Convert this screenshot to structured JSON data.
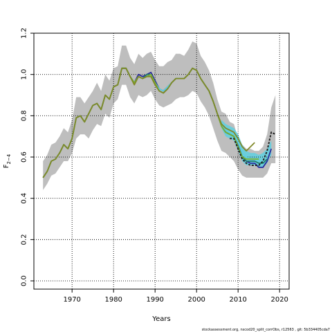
{
  "chart_data": {
    "type": "line",
    "xlabel": "Years",
    "ylabel_main": "F",
    "ylabel_sub": "2−4",
    "xlim": [
      1960.8,
      2022.3
    ],
    "ylim": [
      -0.04,
      1.2
    ],
    "x_ticks": [
      1970,
      1980,
      1990,
      2000,
      2010,
      2020
    ],
    "y_ticks": [
      0.0,
      0.2,
      0.4,
      0.6,
      0.8,
      1.0,
      1.2
    ],
    "y_tick_labels": [
      "0.0",
      "0.2",
      "0.4",
      "0.6",
      "0.8",
      "1.0",
      "1.2"
    ],
    "grid": true,
    "credit": "stockassessment.org, nscod20_split_corrObs, r12563 , git: 5b334405cda7",
    "colors": {
      "band": "#bebebe",
      "band2": "#5fd0e0",
      "grid": "#000000",
      "series": [
        "#2a2a9a",
        "#1f7a6a",
        "#5fd0e0",
        "#7ab030",
        "#808828",
        "#222222"
      ]
    },
    "band": {
      "x": [
        1963,
        1964,
        1965,
        1966,
        1967,
        1968,
        1969,
        1970,
        1971,
        1972,
        1973,
        1974,
        1975,
        1976,
        1977,
        1978,
        1979,
        1980,
        1981,
        1982,
        1983,
        1984,
        1985,
        1986,
        1987,
        1988,
        1989,
        1990,
        1991,
        1992,
        1993,
        1994,
        1995,
        1996,
        1997,
        1998,
        1999,
        2000,
        2001,
        2002,
        2003,
        2004,
        2005,
        2006,
        2007,
        2008,
        2009,
        2010,
        2011,
        2012,
        2013,
        2014,
        2015,
        2016,
        2017,
        2018,
        2019
      ],
      "lower": [
        0.44,
        0.47,
        0.51,
        0.52,
        0.55,
        0.58,
        0.58,
        0.62,
        0.69,
        0.71,
        0.71,
        0.69,
        0.73,
        0.76,
        0.75,
        0.81,
        0.79,
        0.86,
        0.88,
        0.95,
        0.95,
        0.89,
        0.86,
        0.9,
        0.89,
        0.9,
        0.92,
        0.88,
        0.85,
        0.84,
        0.85,
        0.86,
        0.88,
        0.89,
        0.89,
        0.9,
        0.92,
        0.91,
        0.87,
        0.84,
        0.8,
        0.74,
        0.68,
        0.63,
        0.62,
        0.6,
        0.58,
        0.54,
        0.51,
        0.5,
        0.5,
        0.5,
        0.5,
        0.5,
        0.52,
        0.57,
        0.57
      ],
      "upper": [
        0.58,
        0.61,
        0.66,
        0.67,
        0.7,
        0.74,
        0.72,
        0.78,
        0.89,
        0.89,
        0.86,
        0.89,
        0.92,
        0.96,
        0.92,
        1.0,
        0.97,
        1.03,
        1.04,
        1.14,
        1.14,
        1.08,
        1.05,
        1.1,
        1.08,
        1.1,
        1.11,
        1.07,
        1.04,
        1.04,
        1.06,
        1.07,
        1.1,
        1.1,
        1.09,
        1.12,
        1.16,
        1.15,
        1.09,
        1.06,
        1.02,
        0.96,
        0.88,
        0.82,
        0.81,
        0.77,
        0.76,
        0.69,
        0.66,
        0.64,
        0.64,
        0.63,
        0.63,
        0.65,
        0.71,
        0.84,
        0.9
      ]
    },
    "band2": {
      "x": [
        2006,
        2007,
        2008,
        2009,
        2010,
        2011,
        2012,
        2013,
        2014,
        2015,
        2016,
        2017,
        2018
      ],
      "lower": [
        0.74,
        0.7,
        0.69,
        0.68,
        0.63,
        0.58,
        0.56,
        0.56,
        0.56,
        0.55,
        0.55,
        0.57,
        0.61
      ],
      "upper": [
        0.78,
        0.76,
        0.75,
        0.74,
        0.71,
        0.66,
        0.63,
        0.62,
        0.62,
        0.61,
        0.62,
        0.64,
        0.68
      ]
    },
    "series": [
      {
        "x": [
          1963,
          1964,
          1965,
          1966,
          1967,
          1968,
          1969,
          1970,
          1971,
          1972,
          1973,
          1974,
          1975,
          1976,
          1977,
          1978,
          1979,
          1980,
          1981,
          1982,
          1983,
          1984,
          1985,
          1986,
          1987,
          1988,
          1989,
          1990,
          1991,
          1992,
          1993,
          1994,
          1995,
          1996,
          1997,
          1998,
          1999,
          2000,
          2001,
          2002,
          2003,
          2004,
          2005,
          2006,
          2007,
          2008,
          2009,
          2010,
          2011,
          2012,
          2013,
          2014,
          2015,
          2016,
          2017,
          2018
        ],
        "values": [
          0.5,
          0.53,
          0.58,
          0.59,
          0.62,
          0.66,
          0.64,
          0.69,
          0.79,
          0.8,
          0.77,
          0.81,
          0.85,
          0.86,
          0.83,
          0.9,
          0.88,
          0.94,
          0.95,
          1.03,
          1.03,
          0.99,
          0.96,
          1.0,
          0.99,
          1.0,
          1.01,
          0.97,
          0.93,
          0.92,
          0.94,
          0.96,
          0.98,
          0.98,
          0.98,
          1.0,
          1.03,
          1.02,
          0.98,
          0.95,
          0.92,
          0.87,
          0.81,
          0.76,
          0.72,
          0.71,
          0.7,
          0.66,
          0.6,
          0.58,
          0.57,
          0.57,
          0.55,
          0.55,
          0.58,
          0.64
        ]
      },
      {
        "x": [
          1963,
          1964,
          1965,
          1966,
          1967,
          1968,
          1969,
          1970,
          1971,
          1972,
          1973,
          1974,
          1975,
          1976,
          1977,
          1978,
          1979,
          1980,
          1981,
          1982,
          1983,
          1984,
          1985,
          1986,
          1987,
          1988,
          1989,
          1990,
          1991,
          1992,
          1993,
          1994,
          1995,
          1996,
          1997,
          1998,
          1999,
          2000,
          2001,
          2002,
          2003,
          2004,
          2005,
          2006,
          2007,
          2008,
          2009,
          2010,
          2011,
          2012,
          2013,
          2014,
          2015,
          2016,
          2017
        ],
        "values": [
          0.5,
          0.53,
          0.58,
          0.59,
          0.62,
          0.66,
          0.64,
          0.69,
          0.79,
          0.8,
          0.77,
          0.81,
          0.85,
          0.86,
          0.83,
          0.9,
          0.88,
          0.94,
          0.95,
          1.03,
          1.03,
          0.99,
          0.96,
          0.99,
          0.98,
          1.0,
          1.0,
          0.96,
          0.92,
          0.91,
          0.93,
          0.96,
          0.98,
          0.98,
          0.98,
          1.0,
          1.03,
          1.02,
          0.98,
          0.95,
          0.92,
          0.87,
          0.81,
          0.75,
          0.72,
          0.71,
          0.7,
          0.65,
          0.6,
          0.58,
          0.58,
          0.58,
          0.57,
          0.57,
          0.59
        ]
      },
      {
        "x": [
          1963,
          1964,
          1965,
          1966,
          1967,
          1968,
          1969,
          1970,
          1971,
          1972,
          1973,
          1974,
          1975,
          1976,
          1977,
          1978,
          1979,
          1980,
          1981,
          1982,
          1983,
          1984,
          1985,
          1986,
          1987,
          1988,
          1989,
          1990,
          1991,
          1992,
          1993,
          1994,
          1995,
          1996,
          1997,
          1998,
          1999,
          2000,
          2001,
          2002,
          2003,
          2004,
          2005,
          2006,
          2007,
          2008,
          2009,
          2010,
          2011,
          2012,
          2013,
          2014,
          2015,
          2016
        ],
        "values": [
          0.5,
          0.53,
          0.58,
          0.59,
          0.62,
          0.66,
          0.64,
          0.69,
          0.79,
          0.8,
          0.77,
          0.81,
          0.85,
          0.86,
          0.83,
          0.9,
          0.88,
          0.94,
          0.95,
          1.03,
          1.03,
          0.99,
          0.96,
          0.99,
          0.98,
          0.99,
          1.0,
          0.96,
          0.93,
          0.92,
          0.94,
          0.96,
          0.98,
          0.98,
          0.98,
          1.0,
          1.03,
          1.02,
          0.98,
          0.95,
          0.92,
          0.87,
          0.81,
          0.76,
          0.73,
          0.72,
          0.71,
          0.67,
          0.62,
          0.6,
          0.59,
          0.59,
          0.58,
          0.58
        ]
      },
      {
        "x": [
          1963,
          1964,
          1965,
          1966,
          1967,
          1968,
          1969,
          1970,
          1971,
          1972,
          1973,
          1974,
          1975,
          1976,
          1977,
          1978,
          1979,
          1980,
          1981,
          1982,
          1983,
          1984,
          1985,
          1986,
          1987,
          1988,
          1989,
          1990,
          1991,
          1992,
          1993,
          1994,
          1995,
          1996,
          1997,
          1998,
          1999,
          2000,
          2001,
          2002,
          2003,
          2004,
          2005,
          2006,
          2007,
          2008,
          2009,
          2010,
          2011,
          2012,
          2013,
          2014,
          2015
        ],
        "values": [
          0.5,
          0.53,
          0.58,
          0.59,
          0.62,
          0.66,
          0.64,
          0.69,
          0.79,
          0.8,
          0.77,
          0.81,
          0.85,
          0.86,
          0.83,
          0.9,
          0.88,
          0.94,
          0.95,
          1.03,
          1.03,
          0.99,
          0.96,
          0.99,
          0.98,
          0.99,
          1.0,
          0.96,
          0.92,
          0.91,
          0.93,
          0.96,
          0.98,
          0.98,
          0.98,
          1.0,
          1.03,
          1.02,
          0.98,
          0.95,
          0.92,
          0.87,
          0.81,
          0.75,
          0.72,
          0.71,
          0.7,
          0.65,
          0.6,
          0.59,
          0.59,
          0.59,
          0.59
        ]
      },
      {
        "x": [
          1963,
          1964,
          1965,
          1966,
          1967,
          1968,
          1969,
          1970,
          1971,
          1972,
          1973,
          1974,
          1975,
          1976,
          1977,
          1978,
          1979,
          1980,
          1981,
          1982,
          1983,
          1984,
          1985,
          1986,
          1987,
          1988,
          1989,
          1990,
          1991,
          1992,
          1993,
          1994,
          1995,
          1996,
          1997,
          1998,
          1999,
          2000,
          2001,
          2002,
          2003,
          2004,
          2005,
          2006,
          2007,
          2008,
          2009,
          2010,
          2011,
          2012,
          2013,
          2014
        ],
        "values": [
          0.5,
          0.53,
          0.58,
          0.59,
          0.62,
          0.66,
          0.64,
          0.69,
          0.79,
          0.8,
          0.77,
          0.81,
          0.85,
          0.86,
          0.83,
          0.9,
          0.88,
          0.94,
          0.95,
          1.03,
          1.03,
          0.99,
          0.95,
          0.99,
          0.98,
          0.99,
          0.99,
          0.95,
          0.92,
          0.91,
          0.93,
          0.96,
          0.98,
          0.98,
          0.98,
          1.0,
          1.03,
          1.02,
          0.98,
          0.95,
          0.92,
          0.87,
          0.81,
          0.76,
          0.74,
          0.73,
          0.72,
          0.69,
          0.65,
          0.63,
          0.65,
          0.67
        ]
      },
      {
        "x": [
          2008,
          2009,
          2010,
          2011,
          2012,
          2013,
          2014,
          2015,
          2016,
          2017,
          2018,
          2019
        ],
        "values": [
          0.69,
          0.69,
          0.64,
          0.59,
          0.57,
          0.56,
          0.56,
          0.56,
          0.58,
          0.63,
          0.72,
          0.71
        ],
        "dashed": true
      }
    ]
  }
}
